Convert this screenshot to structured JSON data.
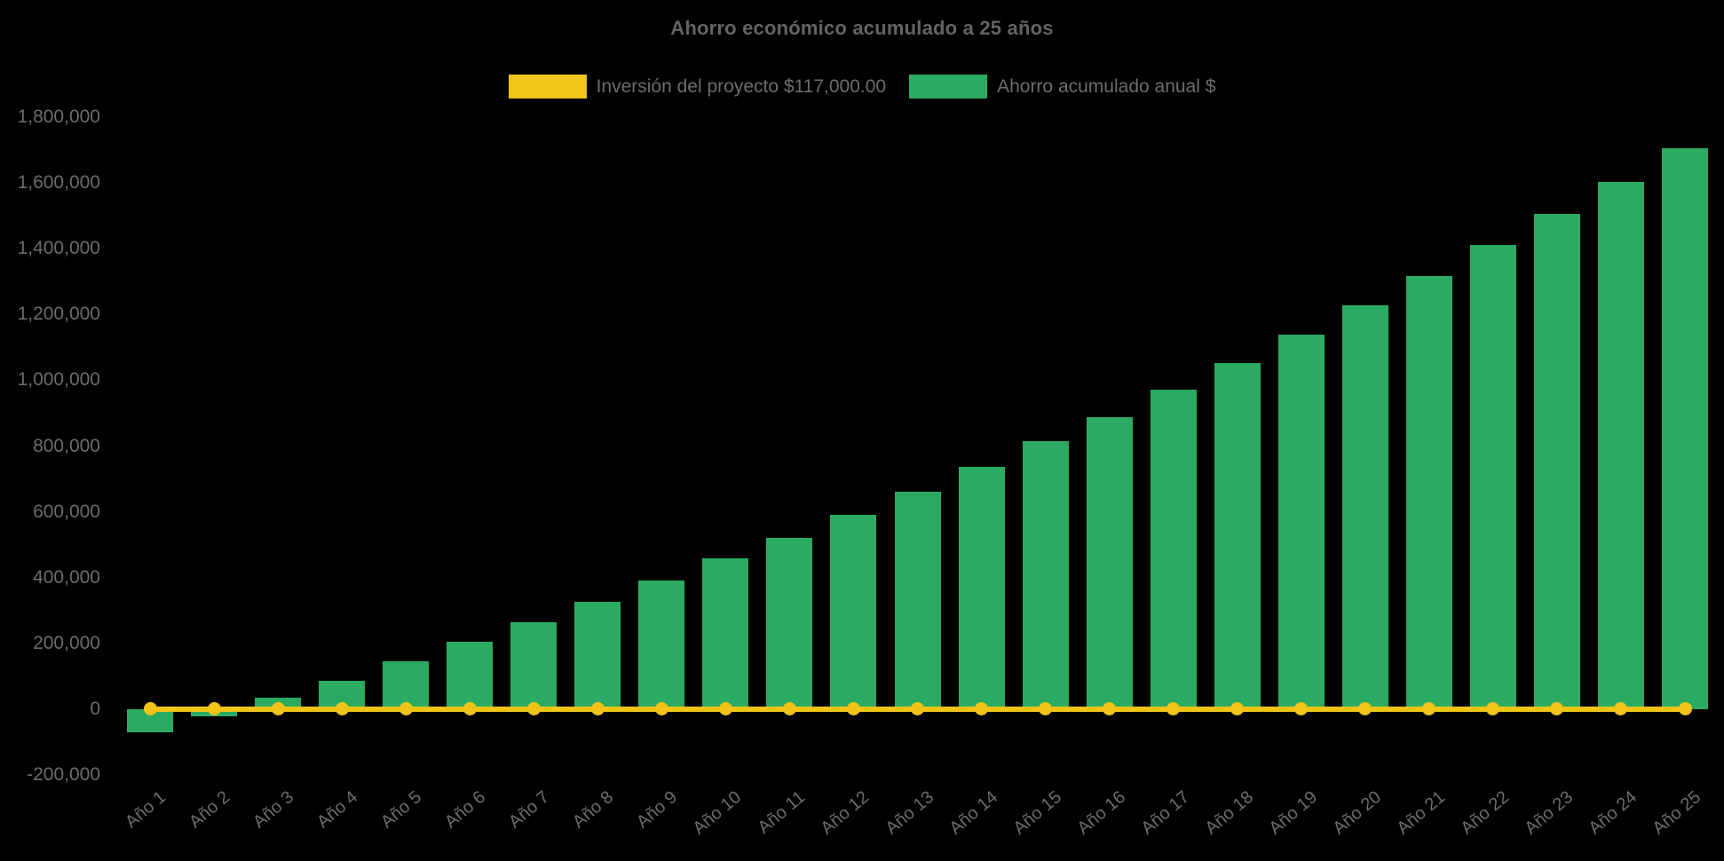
{
  "title": "Ahorro económico acumulado a 25 años",
  "legend": {
    "items": [
      {
        "label": "Inversión del proyecto $117,000.00",
        "color": "#F0C419",
        "series_type": "line"
      },
      {
        "label": "Ahorro acumulado anual $",
        "color": "#2BAB61",
        "series_type": "bar"
      }
    ]
  },
  "chart_data": {
    "type": "bar",
    "title": "Ahorro económico acumulado a 25 años",
    "categories": [
      "Año 1",
      "Año 2",
      "Año 3",
      "Año 4",
      "Año 5",
      "Año 6",
      "Año 7",
      "Año 8",
      "Año 9",
      "Año 10",
      "Año 11",
      "Año 12",
      "Año 13",
      "Año 14",
      "Año 15",
      "Año 16",
      "Año 17",
      "Año 18",
      "Año 19",
      "Año 20",
      "Año 21",
      "Año 22",
      "Año 23",
      "Año 24",
      "Año 25"
    ],
    "series": [
      {
        "name": "Ahorro acumulado anual $",
        "type": "bar",
        "color": "#2BAB61",
        "values": [
          -70000,
          -23000,
          34000,
          86000,
          145000,
          204000,
          263000,
          325000,
          390000,
          458000,
          520000,
          590000,
          661000,
          736000,
          814000,
          888000,
          971000,
          1052000,
          1139000,
          1227000,
          1316000,
          1411000,
          1505000,
          1604000,
          1706000
        ]
      },
      {
        "name": "Inversión del proyecto $117,000.00",
        "type": "line",
        "color": "#F0C419",
        "values": [
          0,
          0,
          0,
          0,
          0,
          0,
          0,
          0,
          0,
          0,
          0,
          0,
          0,
          0,
          0,
          0,
          0,
          0,
          0,
          0,
          0,
          0,
          0,
          0,
          0
        ]
      }
    ],
    "ylim": [
      -200000,
      1800000
    ],
    "ytick_step": 200000,
    "y_tick_labels": [
      "1,800,000",
      "1,600,000",
      "1,400,000",
      "1,200,000",
      "1,000,000",
      "800,000",
      "600,000",
      "400,000",
      "200,000",
      "0",
      "-200,000"
    ],
    "xlabel": "",
    "ylabel": "",
    "grid": false,
    "legend_position": "top",
    "background_color": "#000000",
    "text_color": "#6C6C6C"
  }
}
